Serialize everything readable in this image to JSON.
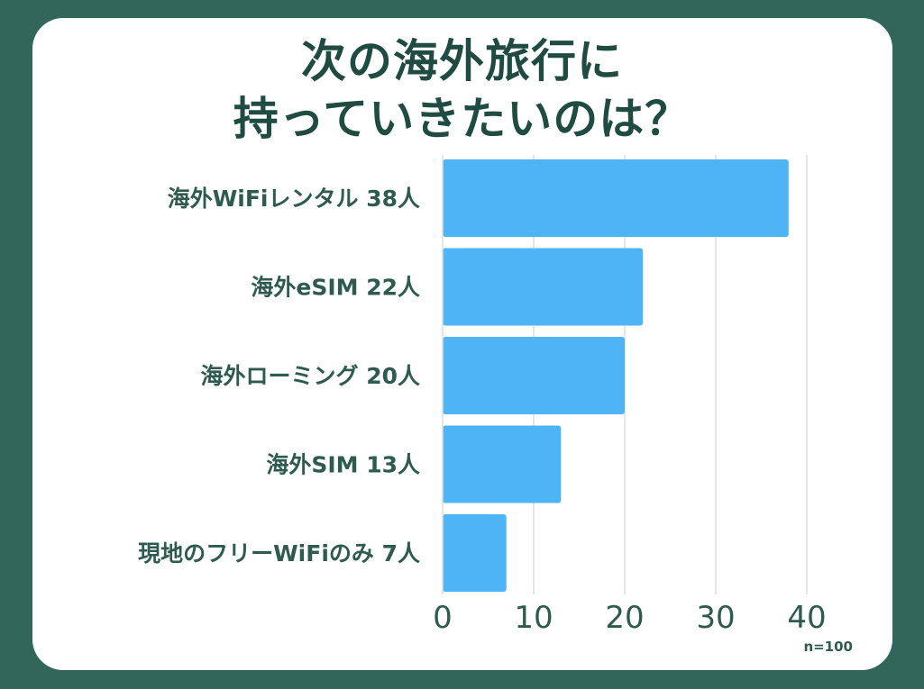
{
  "title_lines": [
    "次の海外旅行に",
    "持っていきたいのは？"
  ],
  "colors": {
    "background": "#33665a",
    "card": "#ffffff",
    "bar": "#4fb4f5",
    "text": "#2e5a50",
    "grid": "#dddddd"
  },
  "chart_data": {
    "type": "bar",
    "orientation": "horizontal",
    "categories": [
      "海外WiFiレンタル 38人",
      "海外eSIM 22人",
      "海外ローミング 20人",
      "海外SIM 13人",
      "現地のフリーWiFiのみ 7人"
    ],
    "values": [
      38,
      22,
      20,
      13,
      7
    ],
    "xlim": [
      0,
      40
    ],
    "xticks": [
      0,
      10,
      20,
      30,
      40
    ],
    "grid": true,
    "note": "n=100"
  }
}
